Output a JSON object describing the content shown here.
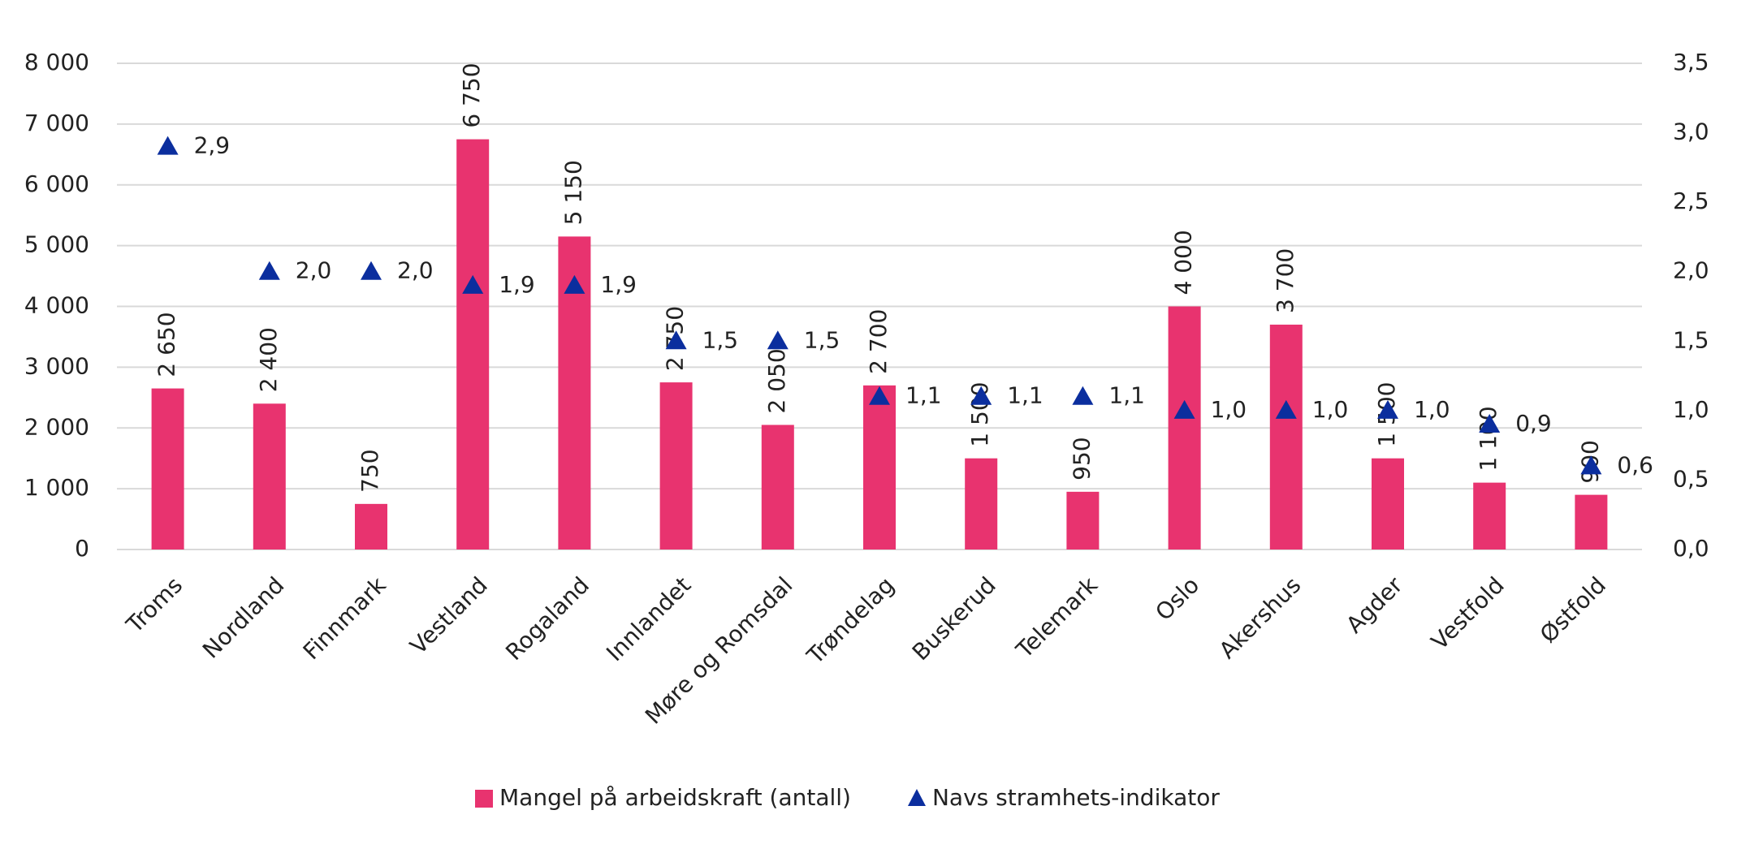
{
  "chart_data": {
    "type": "bar",
    "categories": [
      "Troms",
      "Nordland",
      "Finnmark",
      "Vestland",
      "Rogaland",
      "Innlandet",
      "Møre og Romsdal",
      "Trøndelag",
      "Buskerud",
      "Telemark",
      "Oslo",
      "Akershus",
      "Agder",
      "Vestfold",
      "Østfold"
    ],
    "series": [
      {
        "name": "Mangel på arbeidskraft (antall)",
        "type": "bar",
        "color": "#e8336f",
        "values": [
          2650,
          2400,
          750,
          6750,
          5150,
          2750,
          2050,
          2700,
          1500,
          950,
          4000,
          3700,
          1500,
          1100,
          900
        ],
        "value_labels": [
          "2 650",
          "2 400",
          "750",
          "6 750",
          "5 150",
          "2 750",
          "2 050",
          "2 700",
          "1 500",
          "950",
          "4 000",
          "3 700",
          "1 500",
          "1 100",
          "900"
        ]
      },
      {
        "name": "Navs stramhets-indikator",
        "type": "scatter",
        "marker": "triangle",
        "axis": "y2",
        "color": "#0b2e9e",
        "values": [
          2.9,
          2.0,
          2.0,
          1.9,
          1.9,
          1.5,
          1.5,
          1.1,
          1.1,
          1.1,
          1.0,
          1.0,
          1.0,
          0.9,
          0.6
        ],
        "value_labels": [
          "2,9",
          "2,0",
          "2,0",
          "1,9",
          "1,9",
          "1,5",
          "1,5",
          "1,1",
          "1,1",
          "1,1",
          "1,0",
          "1,0",
          "1,0",
          "0,9",
          "0,6"
        ]
      }
    ],
    "ylim": [
      0,
      8000
    ],
    "yticks": [
      0,
      {
        "value": 1000,
        "label": "1 000"
      },
      {
        "value": 2000,
        "label": "2 000"
      },
      {
        "value": 3000,
        "label": "3 000"
      },
      {
        "value": 4000,
        "label": "4 000"
      },
      {
        "value": 5000,
        "label": "5 000"
      },
      {
        "value": 6000,
        "label": "6 000"
      },
      {
        "value": 7000,
        "label": "7 000"
      },
      {
        "value": 8000,
        "label": "8 000"
      }
    ],
    "y2lim": [
      0,
      3.5
    ],
    "y2ticks": [
      {
        "value": 0,
        "label": "0,0"
      },
      {
        "value": 0.5,
        "label": "0,5"
      },
      {
        "value": 1,
        "label": "1,0"
      },
      {
        "value": 1.5,
        "label": "1,5"
      },
      {
        "value": 2,
        "label": "2,0"
      },
      {
        "value": 2.5,
        "label": "2,5"
      },
      {
        "value": 3,
        "label": "3,0"
      },
      {
        "value": 3.5,
        "label": "3,5"
      }
    ],
    "grid": true,
    "legend": "bottom"
  }
}
